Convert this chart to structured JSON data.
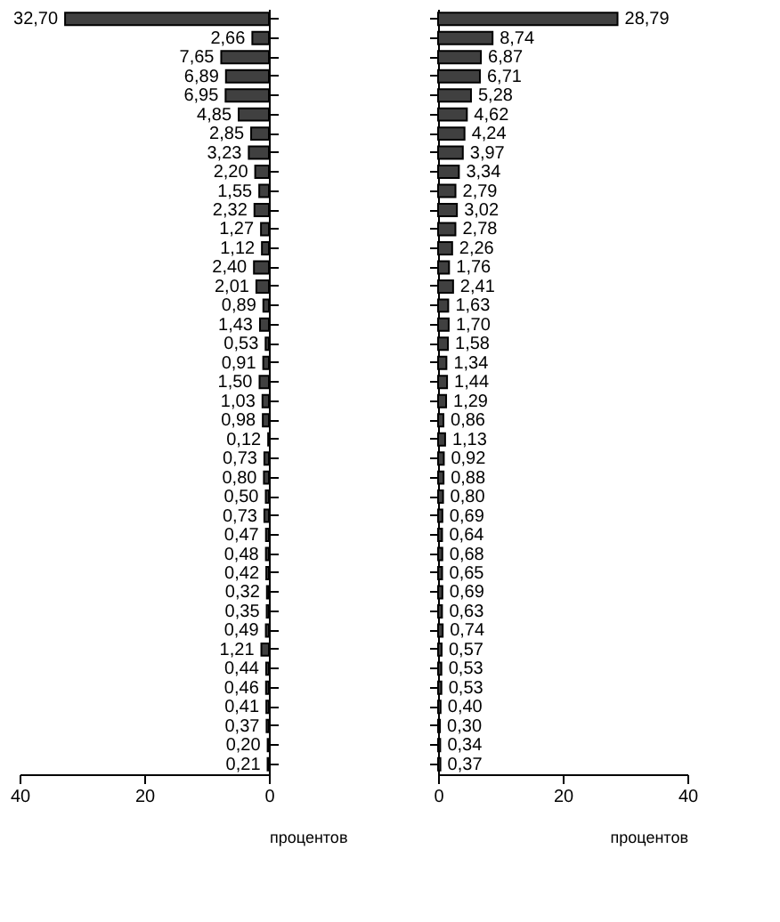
{
  "chart_data": [
    {
      "type": "bar",
      "orientation": "horizontal",
      "xlabel": "процентов",
      "xlim": [
        40,
        0
      ],
      "xticks": [
        40,
        20,
        0
      ],
      "tick_labels": "x",
      "grid": false,
      "color": "#404040",
      "categories": [
        null,
        null,
        null,
        null,
        null,
        null,
        null,
        null,
        null,
        null,
        null,
        null,
        null,
        null,
        null,
        null,
        null,
        null,
        null,
        null,
        null,
        null,
        null,
        null,
        null,
        null,
        null,
        null,
        null,
        null,
        null,
        null,
        null,
        null,
        null,
        null,
        null,
        null,
        null,
        null
      ],
      "values": [
        32.7,
        2.66,
        7.65,
        6.89,
        6.95,
        4.85,
        2.85,
        3.23,
        2.2,
        1.55,
        2.32,
        1.27,
        1.12,
        2.4,
        2.01,
        0.89,
        1.43,
        0.53,
        0.91,
        1.5,
        1.03,
        0.98,
        0.12,
        0.73,
        0.8,
        0.5,
        0.73,
        0.47,
        0.48,
        0.42,
        0.32,
        0.35,
        0.49,
        1.21,
        0.44,
        0.46,
        0.41,
        0.37,
        0.2,
        0.21
      ],
      "value_labels": [
        "32,70",
        "2,66",
        "7,65",
        "6,89",
        "6,95",
        "4,85",
        "2,85",
        "3,23",
        "2,20",
        "1,55",
        "2,32",
        "1,27",
        "1,12",
        "2,40",
        "2,01",
        "0,89",
        "1,43",
        "0,53",
        "0,91",
        "1,50",
        "1,03",
        "0,98",
        "0,12",
        "0,73",
        "0,80",
        "0,50",
        "0,73",
        "0,47",
        "0,48",
        "0,42",
        "0,32",
        "0,35",
        "0,49",
        "1,21",
        "0,44",
        "0,46",
        "0,41",
        "0,37",
        "0,20",
        "0,21"
      ]
    },
    {
      "type": "bar",
      "orientation": "horizontal",
      "xlabel": "процентов",
      "xlim": [
        0,
        40
      ],
      "xticks": [
        0,
        20,
        40
      ],
      "tick_labels": "x",
      "grid": false,
      "color": "#404040",
      "categories": [
        null,
        null,
        null,
        null,
        null,
        null,
        null,
        null,
        null,
        null,
        null,
        null,
        null,
        null,
        null,
        null,
        null,
        null,
        null,
        null,
        null,
        null,
        null,
        null,
        null,
        null,
        null,
        null,
        null,
        null,
        null,
        null,
        null,
        null,
        null,
        null,
        null,
        null,
        null,
        null
      ],
      "values": [
        28.79,
        8.74,
        6.87,
        6.71,
        5.28,
        4.62,
        4.24,
        3.97,
        3.34,
        2.79,
        3.02,
        2.78,
        2.26,
        1.76,
        2.41,
        1.63,
        1.7,
        1.58,
        1.34,
        1.44,
        1.29,
        0.86,
        1.13,
        0.92,
        0.88,
        0.8,
        0.69,
        0.64,
        0.68,
        0.65,
        0.69,
        0.63,
        0.74,
        0.57,
        0.53,
        0.53,
        0.4,
        0.3,
        0.34,
        0.37
      ],
      "value_labels": [
        "28,79",
        "8,74",
        "6,87",
        "6,71",
        "5,28",
        "4,62",
        "4,24",
        "3,97",
        "3,34",
        "2,79",
        "3,02",
        "2,78",
        "2,26",
        "1,76",
        "2,41",
        "1,63",
        "1,70",
        "1,58",
        "1,34",
        "1,44",
        "1,29",
        "0,86",
        "1,13",
        "0,92",
        "0,88",
        "0,80",
        "0,69",
        "0,64",
        "0,68",
        "0,65",
        "0,69",
        "0,63",
        "0,74",
        "0,57",
        "0,53",
        "0,53",
        "0,40",
        "0,30",
        "0,34",
        "0,37"
      ]
    }
  ]
}
